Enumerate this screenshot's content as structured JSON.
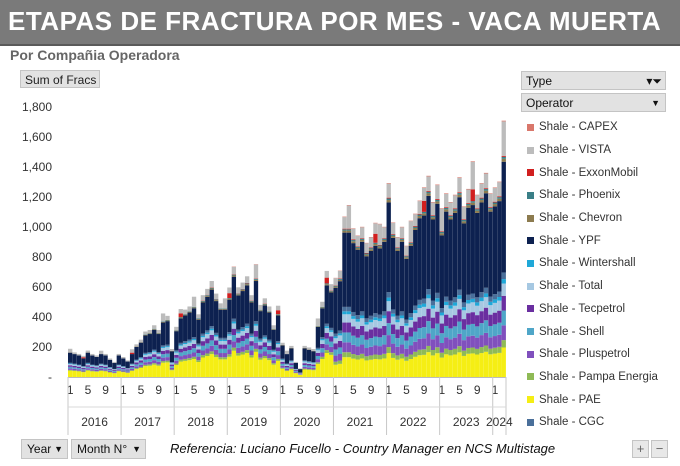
{
  "header": {
    "title": "ETAPAS DE FRACTURA POR MES -  VACA MUERTA",
    "subtitle": "Por Compañia Operadora"
  },
  "field_button": "Sum of Fracs",
  "legend_panel": {
    "type_label": "Type",
    "operator_label": "Operator"
  },
  "footer": {
    "year_button": "Year",
    "month_button": "Month N°",
    "reference": "Referencia:  Luciano Fucello - Country Manager en NCS Multistage",
    "plus": "+",
    "minus": "−"
  },
  "chart_data": {
    "type": "bar",
    "stacked": true,
    "ylim": [
      0,
      1800
    ],
    "yticks": [
      "-",
      "200",
      "400",
      "600",
      "800",
      "1,000",
      "1,200",
      "1,400",
      "1,600",
      "1,800"
    ],
    "years": [
      "2016",
      "2017",
      "2018",
      "2019",
      "2020",
      "2021",
      "2022",
      "2023",
      "2024"
    ],
    "month_labels": [
      "1",
      "5",
      "9"
    ],
    "grid": false,
    "legend_position": "right",
    "series": [
      {
        "name": "Shale - CAPEX",
        "color": "#d9776b",
        "share": 0.003
      },
      {
        "name": "Shale - VISTA",
        "color": "#bcbcbc",
        "share": 0.09
      },
      {
        "name": "Shale - ExxonMobil",
        "color": "#d11f1f",
        "share": 0.012
      },
      {
        "name": "Shale - Phoenix",
        "color": "#3a7f87",
        "share": 0.008
      },
      {
        "name": "Shale - Chevron",
        "color": "#8c7b4f",
        "share": 0.012
      },
      {
        "name": "Shale - YPF",
        "color": "#0d2150",
        "share": 0.44
      },
      {
        "name": "Shale - Wintershall",
        "color": "#1fa8d8",
        "share": 0.018
      },
      {
        "name": "Shale - Total",
        "color": "#a6c8e2",
        "share": 0.05
      },
      {
        "name": "Shale - Tecpetrol",
        "color": "#6a2fa0",
        "share": 0.06
      },
      {
        "name": "Shale - Shell",
        "color": "#4fa6c8",
        "share": 0.06
      },
      {
        "name": "Shale - Pluspetrol",
        "color": "#8050bd",
        "share": 0.06
      },
      {
        "name": "Shale - Pampa Energia",
        "color": "#8fba56",
        "share": 0.03
      },
      {
        "name": "Shale - PAE",
        "color": "#f5ee14",
        "share": 0.13
      },
      {
        "name": "Shale - CGC",
        "color": "#4a6f9a",
        "share": 0.027
      }
    ],
    "monthly_totals": [
      170,
      160,
      150,
      130,
      170,
      150,
      140,
      160,
      150,
      120,
      100,
      150,
      130,
      110,
      160,
      210,
      240,
      290,
      300,
      330,
      300,
      380,
      390,
      180,
      320,
      410,
      430,
      450,
      480,
      400,
      520,
      560,
      610,
      530,
      470,
      470,
      540,
      700,
      570,
      600,
      640,
      520,
      670,
      460,
      500,
      450,
      330,
      430,
      220,
      160,
      200,
      100,
      60,
      200,
      190,
      180,
      350,
      480,
      640,
      590,
      680,
      730,
      1100,
      1100,
      1020,
      970,
      1030,
      920,
      960,
      1000,
      980,
      1030,
      1330,
      1060,
      960,
      1030,
      900,
      1000,
      1120,
      1210,
      1230,
      1380,
      1200,
      1320,
      1080,
      1260,
      1200,
      1250,
      1370,
      1170,
      1290,
      1310,
      1250,
      1330,
      1400,
      1260,
      1300,
      1340,
      1640
    ]
  }
}
